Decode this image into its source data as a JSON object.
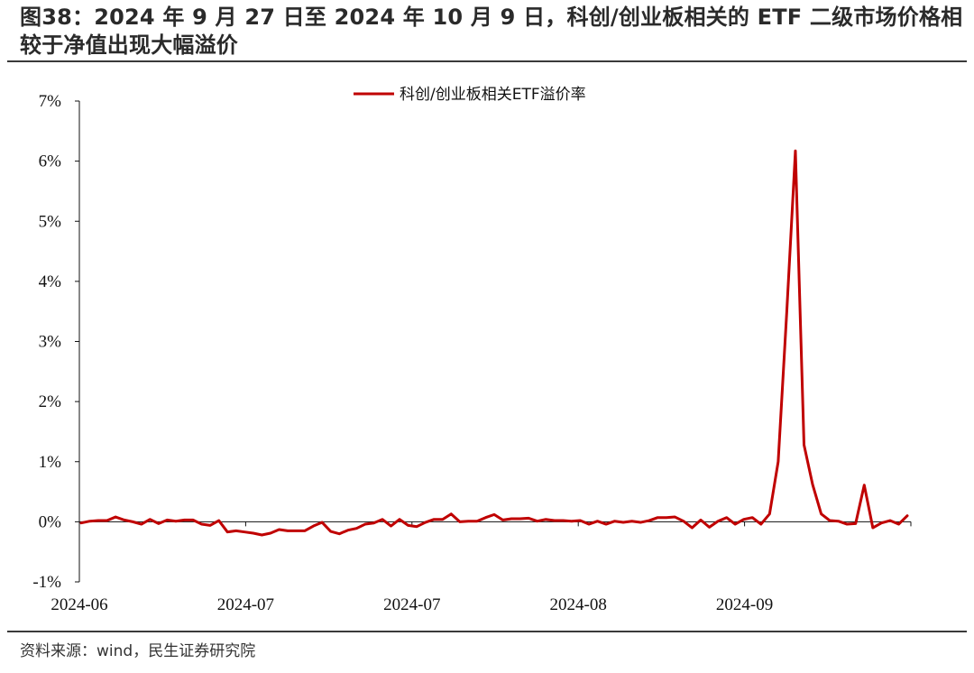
{
  "header": {
    "title": "图38：2024 年 9 月 27 日至 2024 年 10 月 9 日，科创/创业板相关的 ETF 二级市场价格相较于净值出现大幅溢价"
  },
  "footer": {
    "source": "资料来源：wind，民生证券研究院"
  },
  "colors": {
    "series": "#c00000",
    "axis": "#111111",
    "rule": "#3a3a3a"
  },
  "chart_data": {
    "type": "line",
    "title": "",
    "xlabel": "",
    "ylabel": "",
    "ylim": [
      -1,
      7
    ],
    "yticks": [
      -1,
      0,
      1,
      2,
      3,
      4,
      5,
      6,
      7
    ],
    "ytick_labels": [
      "-1%",
      "0%",
      "1%",
      "2%",
      "3%",
      "4%",
      "5%",
      "6%",
      "7%"
    ],
    "xtick_labels": [
      "2024-06",
      "2024-07",
      "2024-07",
      "2024-08",
      "2024-09"
    ],
    "grid": false,
    "legend_position": "top-center",
    "series": [
      {
        "name": "科创/创业板相关ETF溢价率",
        "values": [
          -0.02,
          0.01,
          0.02,
          0.02,
          0.08,
          0.03,
          0.0,
          -0.04,
          0.04,
          -0.03,
          0.03,
          0.01,
          0.03,
          0.03,
          -0.04,
          -0.06,
          0.02,
          -0.17,
          -0.15,
          -0.17,
          -0.19,
          -0.22,
          -0.19,
          -0.13,
          -0.15,
          -0.15,
          -0.15,
          -0.07,
          -0.01,
          -0.16,
          -0.2,
          -0.14,
          -0.11,
          -0.04,
          -0.02,
          0.04,
          -0.07,
          0.04,
          -0.06,
          -0.08,
          -0.01,
          0.04,
          0.04,
          0.13,
          0.0,
          0.01,
          0.01,
          0.07,
          0.12,
          0.03,
          0.05,
          0.05,
          0.06,
          0.01,
          0.04,
          0.02,
          0.02,
          0.01,
          0.02,
          -0.04,
          0.01,
          -0.04,
          0.01,
          -0.01,
          0.01,
          -0.01,
          0.02,
          0.07,
          0.07,
          0.08,
          0.01,
          -0.1,
          0.03,
          -0.09,
          0.01,
          0.07,
          -0.04,
          0.04,
          0.07,
          -0.04,
          0.13,
          1.0,
          3.5,
          6.17,
          1.28,
          0.62,
          0.13,
          0.02,
          0.01,
          -0.04,
          -0.03,
          0.61,
          -0.1,
          -0.02,
          0.02,
          -0.04,
          0.1
        ]
      }
    ]
  }
}
